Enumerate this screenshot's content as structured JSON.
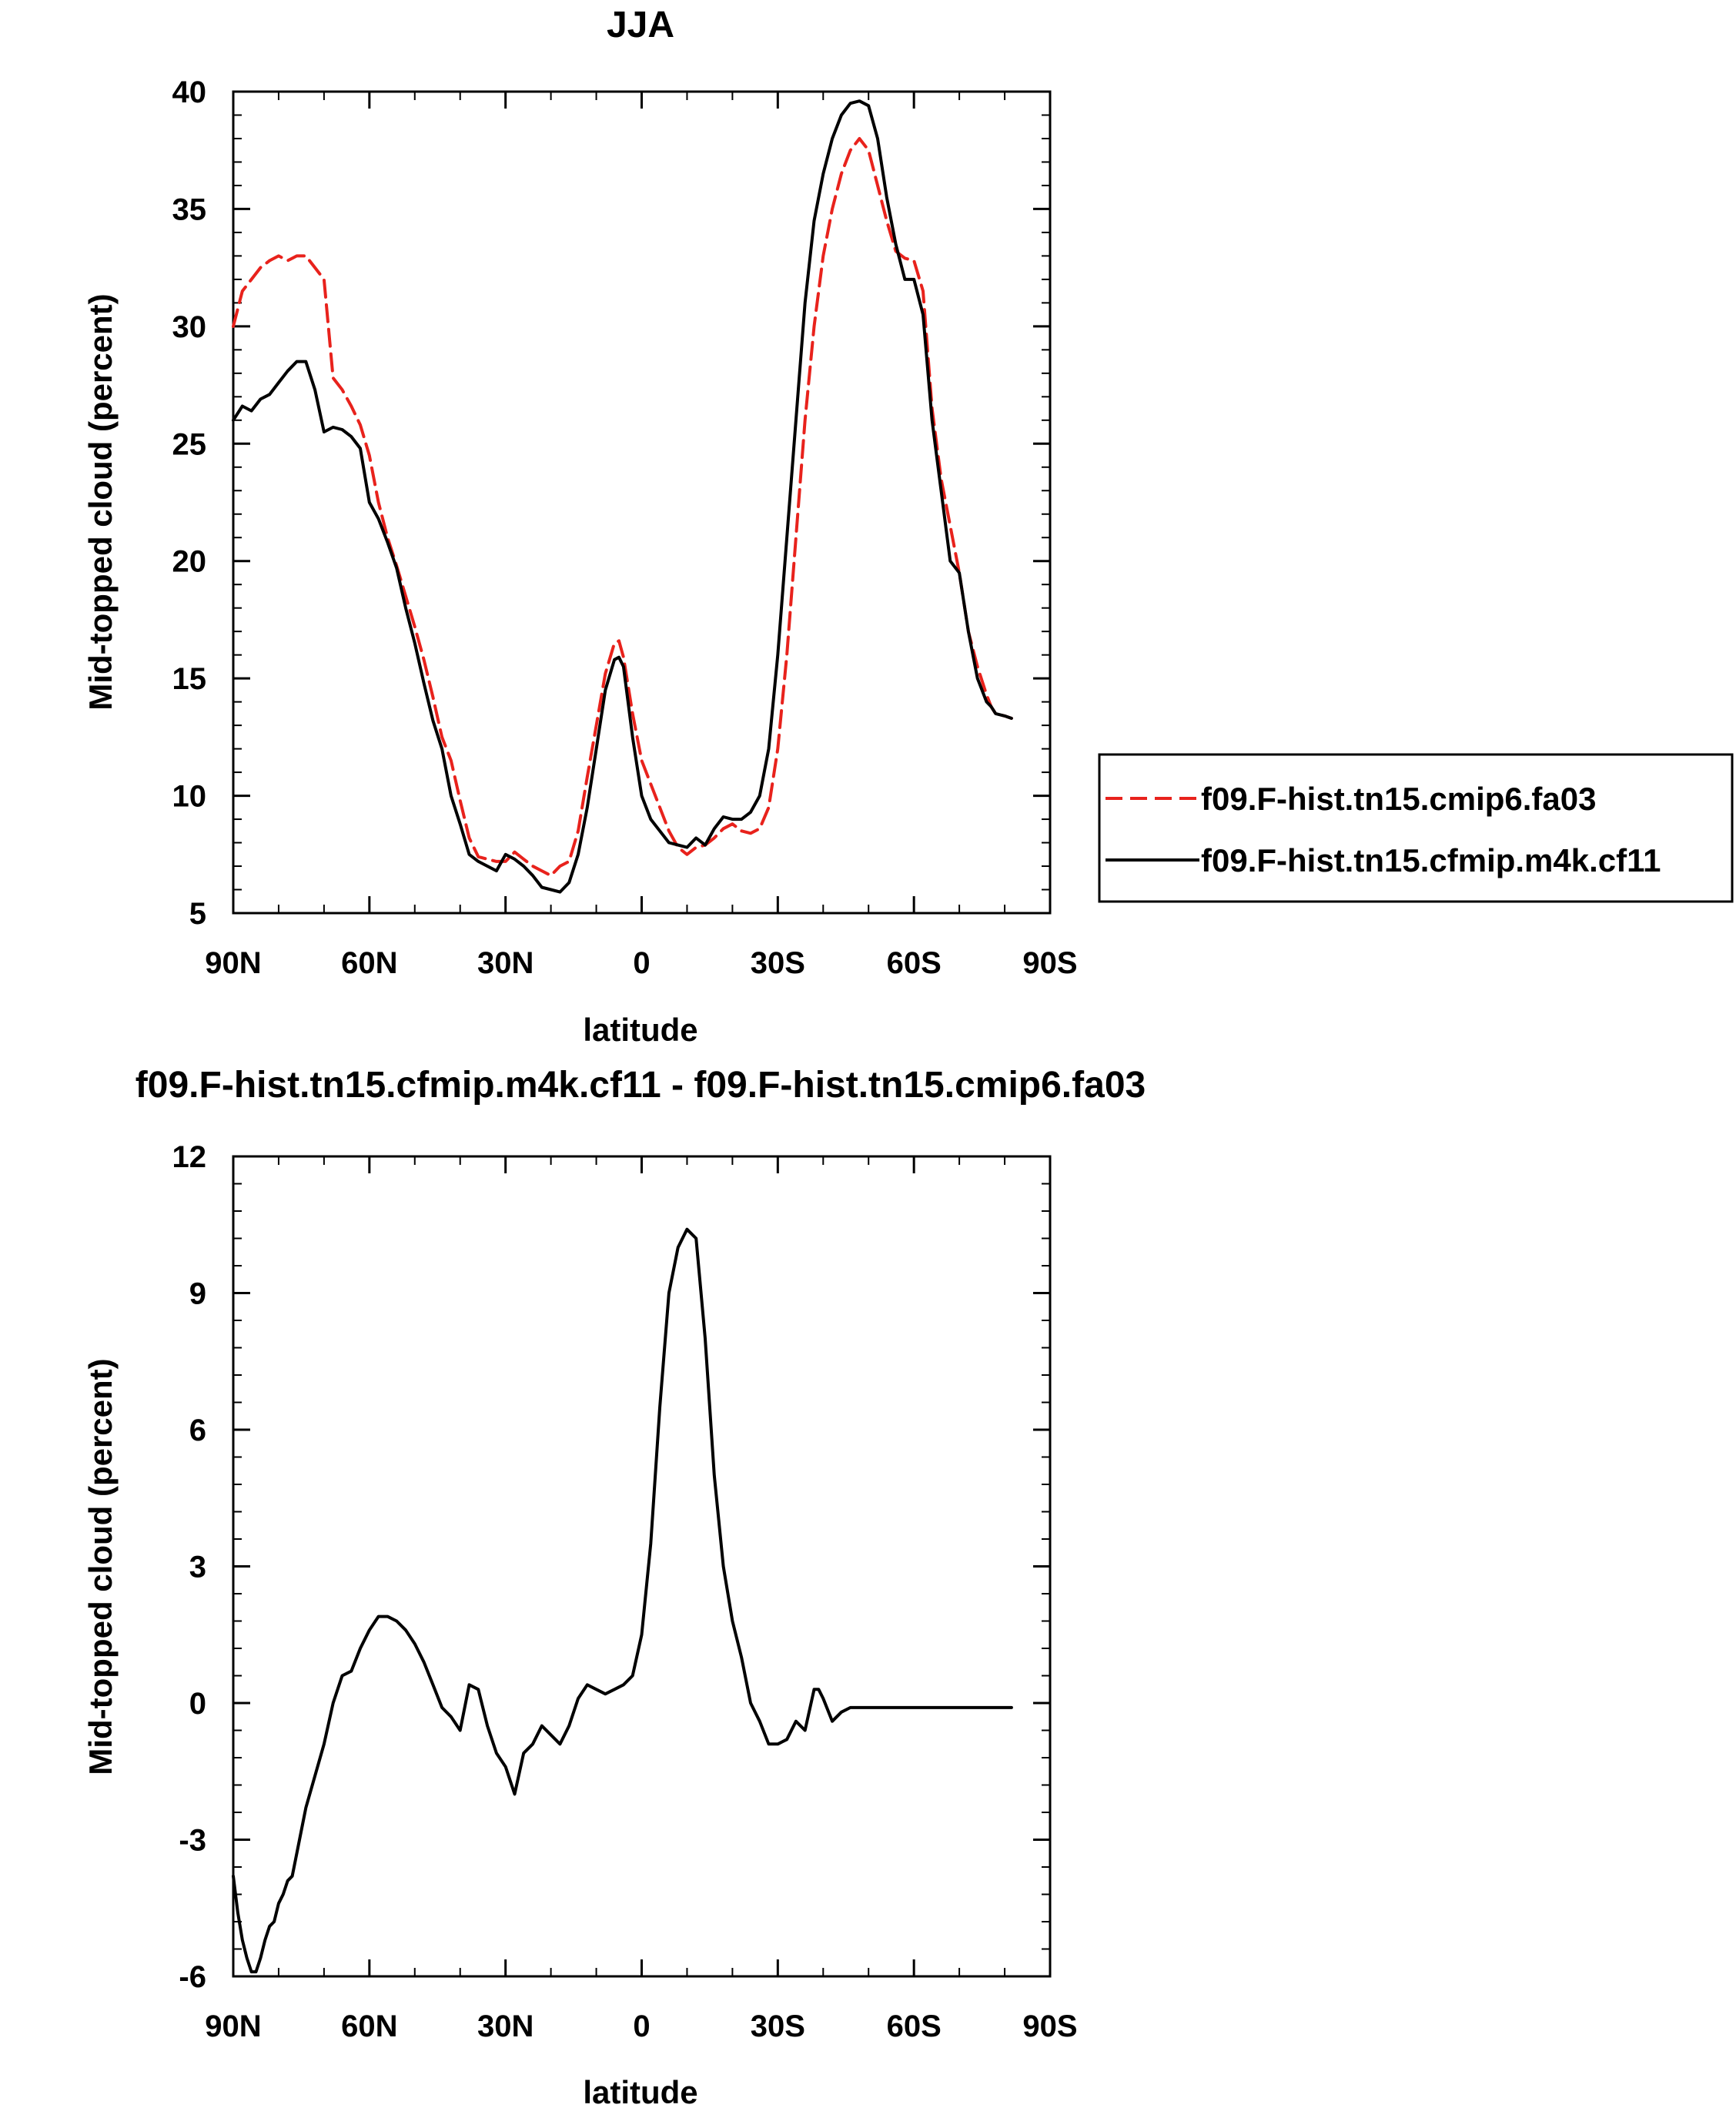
{
  "chart_data": [
    {
      "type": "line",
      "title": "JJA",
      "xlabel": "latitude",
      "ylabel": "Mid-topped cloud (percent)",
      "xlim": [
        90,
        -90
      ],
      "ylim": [
        5,
        40
      ],
      "x_ticks": [
        90,
        60,
        30,
        0,
        -30,
        -60,
        -90
      ],
      "x_tick_labels": [
        "90N",
        "60N",
        "30N",
        "0",
        "30S",
        "60S",
        "90S"
      ],
      "y_ticks": [
        5,
        10,
        15,
        20,
        25,
        30,
        35,
        40
      ],
      "y_tick_labels": [
        "5",
        "10",
        "15",
        "20",
        "25",
        "30",
        "35",
        "40"
      ],
      "legend_position": "right",
      "series": [
        {
          "name": "f09.F-hist.tn15.cmip6.fa03",
          "color": "#e8221c",
          "dash": "dashed",
          "x": [
            90,
            88,
            86,
            84,
            82,
            80,
            78,
            76,
            74,
            72,
            70,
            68,
            66,
            64,
            62,
            60,
            58,
            56,
            54,
            52,
            50,
            48,
            46,
            44,
            42,
            40,
            38,
            36,
            34,
            32,
            30,
            28,
            26,
            24,
            22,
            20,
            18,
            16,
            14,
            12,
            10,
            8,
            6,
            5,
            4,
            2,
            0,
            -2,
            -4,
            -6,
            -8,
            -10,
            -12,
            -14,
            -16,
            -18,
            -20,
            -22,
            -24,
            -26,
            -28,
            -30,
            -32,
            -34,
            -36,
            -38,
            -40,
            -42,
            -44,
            -46,
            -48,
            -50,
            -52,
            -54,
            -56,
            -58,
            -60,
            -62,
            -64,
            -66,
            -68,
            -70,
            -72,
            -74,
            -76,
            -77,
            -78,
            -80,
            -81.5
          ],
          "values": [
            30.0,
            31.5,
            32.0,
            32.5,
            32.8,
            33.0,
            32.8,
            33.0,
            33.0,
            32.5,
            32.0,
            27.8,
            27.3,
            26.6,
            25.8,
            24.5,
            22.5,
            21.0,
            19.8,
            18.5,
            17.2,
            15.8,
            14.2,
            12.5,
            11.5,
            9.8,
            8.2,
            7.4,
            7.3,
            7.2,
            7.2,
            7.6,
            7.3,
            7.0,
            6.8,
            6.6,
            7.0,
            7.2,
            8.5,
            10.8,
            13.0,
            15.2,
            16.5,
            16.6,
            15.9,
            13.5,
            11.5,
            10.5,
            9.5,
            8.5,
            7.8,
            7.5,
            7.8,
            7.9,
            8.2,
            8.6,
            8.8,
            8.5,
            8.4,
            8.6,
            9.5,
            12.0,
            16.0,
            21.0,
            26.0,
            30.0,
            33.0,
            35.0,
            36.5,
            37.5,
            38.0,
            37.5,
            36.0,
            34.5,
            33.2,
            32.9,
            32.8,
            31.5,
            26.5,
            23.5,
            21.5,
            19.5,
            17.0,
            15.5,
            14.3,
            13.8,
            13.5,
            13.4,
            13.3
          ]
        },
        {
          "name": "f09.F-hist.tn15.cfmip.m4k.cf11",
          "color": "#000000",
          "dash": "solid",
          "x": [
            90,
            88,
            86,
            84,
            82,
            80,
            78,
            76,
            74,
            72,
            70,
            68,
            66,
            64,
            62,
            60,
            58,
            56,
            54,
            52,
            50,
            48,
            46,
            44,
            42,
            40,
            38,
            36,
            34,
            32,
            30,
            28,
            26,
            24,
            22,
            20,
            18,
            16,
            14,
            12,
            10,
            8,
            6,
            5,
            4,
            2,
            0,
            -2,
            -4,
            -6,
            -8,
            -10,
            -12,
            -14,
            -16,
            -18,
            -20,
            -22,
            -24,
            -26,
            -28,
            -30,
            -32,
            -34,
            -36,
            -38,
            -40,
            -42,
            -44,
            -46,
            -48,
            -50,
            -52,
            -54,
            -56,
            -58,
            -60,
            -62,
            -64,
            -66,
            -68,
            -70,
            -72,
            -74,
            -76,
            -77,
            -78,
            -80,
            -81.5
          ],
          "values": [
            26.0,
            26.6,
            26.4,
            26.9,
            27.1,
            27.6,
            28.1,
            28.5,
            28.5,
            27.3,
            25.5,
            25.7,
            25.6,
            25.3,
            24.8,
            22.5,
            21.8,
            20.8,
            19.7,
            18.0,
            16.5,
            14.8,
            13.2,
            12.0,
            10.0,
            8.8,
            7.5,
            7.2,
            7.0,
            6.8,
            7.5,
            7.3,
            7.0,
            6.6,
            6.1,
            6.0,
            5.9,
            6.3,
            7.5,
            9.5,
            12.0,
            14.5,
            15.8,
            15.9,
            15.5,
            12.5,
            10.0,
            9.0,
            8.5,
            8.0,
            7.9,
            7.8,
            8.2,
            7.9,
            8.6,
            9.1,
            9.0,
            9.0,
            9.3,
            10.0,
            12.0,
            16.0,
            21.0,
            26.0,
            31.0,
            34.5,
            36.5,
            38.0,
            39.0,
            39.5,
            39.6,
            39.4,
            38.0,
            35.5,
            33.5,
            32.0,
            32.0,
            30.5,
            26.0,
            23.0,
            20.0,
            19.5,
            17.0,
            15.0,
            14.0,
            13.8,
            13.5,
            13.4,
            13.3
          ]
        }
      ]
    },
    {
      "type": "line",
      "title": "f09.F-hist.tn15.cfmip.m4k.cf11 - f09.F-hist.tn15.cmip6.fa03",
      "xlabel": "latitude",
      "ylabel": "Mid-topped cloud (percent)",
      "xlim": [
        90,
        -90
      ],
      "ylim": [
        -6,
        12
      ],
      "x_ticks": [
        90,
        60,
        30,
        0,
        -30,
        -60,
        -90
      ],
      "x_tick_labels": [
        "90N",
        "60N",
        "30N",
        "0",
        "30S",
        "60S",
        "90S"
      ],
      "y_ticks": [
        -6,
        -3,
        0,
        3,
        6,
        9,
        12
      ],
      "y_tick_labels": [
        "-6",
        "-3",
        "0",
        "3",
        "6",
        "9",
        "12"
      ],
      "series": [
        {
          "color": "#000000",
          "dash": "solid",
          "x": [
            90,
            89,
            88,
            87,
            86,
            85,
            84,
            83,
            82,
            81,
            80,
            79,
            78,
            77,
            76,
            75,
            74,
            72,
            70,
            68,
            66,
            64,
            62,
            60,
            58,
            56,
            54,
            52,
            50,
            48,
            46,
            44,
            42,
            40,
            38,
            36,
            34,
            32,
            30,
            28,
            26,
            24,
            22,
            20,
            18,
            16,
            14,
            12,
            10,
            8,
            6,
            4,
            2,
            0,
            -2,
            -4,
            -6,
            -8,
            -10,
            -12,
            -14,
            -16,
            -18,
            -20,
            -22,
            -24,
            -26,
            -28,
            -30,
            -32,
            -34,
            -36,
            -38,
            -39,
            -40,
            -42,
            -44,
            -46,
            -48,
            -50,
            -52,
            -54,
            -56,
            -58,
            -60,
            -62,
            -64,
            -66,
            -67,
            -68,
            -69,
            -70,
            -71,
            -72,
            -73,
            -74,
            -75,
            -76,
            -77,
            -78,
            -79,
            -80,
            -81.5
          ],
          "values": [
            -3.8,
            -4.6,
            -5.2,
            -5.6,
            -5.9,
            -5.9,
            -5.6,
            -5.2,
            -4.9,
            -4.8,
            -4.4,
            -4.2,
            -3.9,
            -3.8,
            -3.3,
            -2.8,
            -2.3,
            -1.6,
            -0.9,
            0.0,
            0.6,
            0.7,
            1.2,
            1.6,
            1.9,
            1.9,
            1.8,
            1.6,
            1.3,
            0.9,
            0.4,
            -0.1,
            -0.3,
            -0.6,
            0.4,
            0.3,
            -0.5,
            -1.1,
            -1.4,
            -2.0,
            -1.1,
            -0.9,
            -0.5,
            -0.7,
            -0.9,
            -0.5,
            0.1,
            0.4,
            0.3,
            0.2,
            0.3,
            0.4,
            0.6,
            1.5,
            3.5,
            6.5,
            9.0,
            10.0,
            10.4,
            10.2,
            8.0,
            5.0,
            3.0,
            1.8,
            1.0,
            0.0,
            -0.4,
            -0.9,
            -0.9,
            -0.8,
            -0.4,
            -0.6,
            0.3,
            0.3,
            0.1,
            -0.4,
            -0.2,
            -0.1,
            -0.1,
            -0.1,
            -0.1,
            -0.1,
            -0.1,
            -0.1,
            -0.1,
            -0.1,
            -0.1,
            -0.1,
            -0.1,
            -0.1,
            -0.1,
            -0.1,
            -0.1,
            -0.1,
            -0.1,
            -0.1,
            -0.1,
            -0.1,
            -0.1,
            -0.1,
            -0.1,
            -0.1,
            -0.1
          ]
        }
      ]
    }
  ]
}
